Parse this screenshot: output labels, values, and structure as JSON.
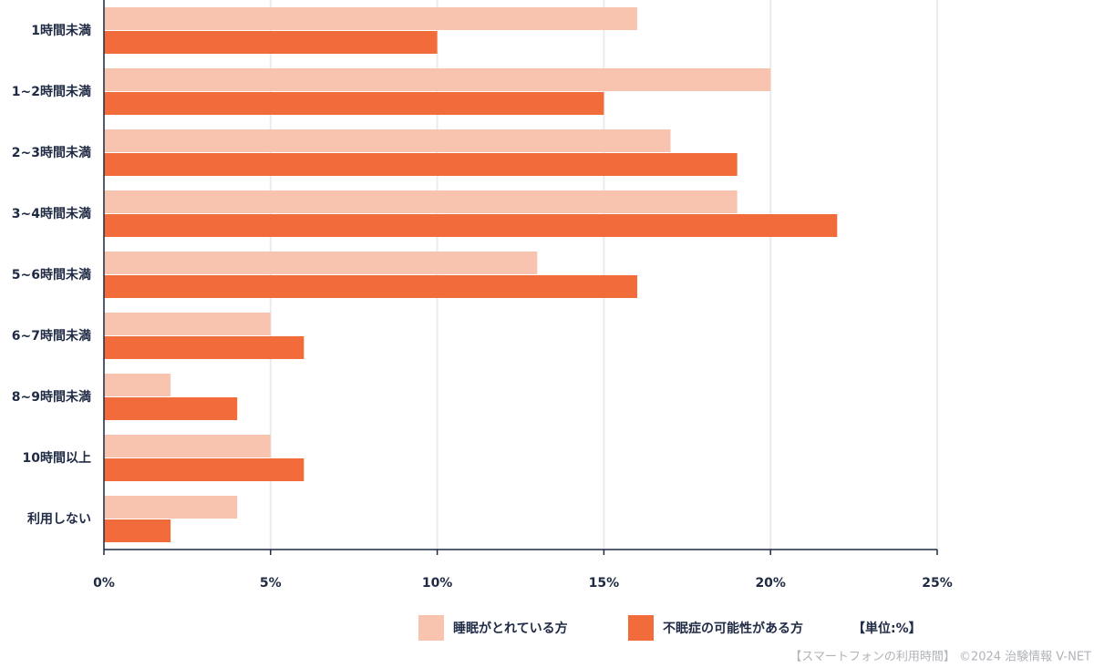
{
  "chart_data": {
    "type": "hbar",
    "categories": [
      "1時間未満",
      "1~2時間未満",
      "2~3時間未満",
      "3~4時間未満",
      "5~6時間未満",
      "6~7時間未満",
      "8~9時間未満",
      "10時間以上",
      "利用しない"
    ],
    "series": [
      {
        "name": "睡眠がとれている方",
        "color": "#f8c4b0",
        "values": [
          16,
          20,
          17,
          19,
          13,
          5,
          2,
          5,
          4
        ]
      },
      {
        "name": "不眠症の可能性がある方",
        "color": "#f26b3a",
        "values": [
          10,
          15,
          19,
          22,
          16,
          6,
          4,
          6,
          2
        ]
      }
    ],
    "xlim": [
      0,
      25
    ],
    "xticks": [
      {
        "value": 0,
        "label": "0%"
      },
      {
        "value": 5,
        "label": "5%"
      },
      {
        "value": 10,
        "label": "10%"
      },
      {
        "value": 15,
        "label": "15%"
      },
      {
        "value": 20,
        "label": "20%"
      },
      {
        "value": 25,
        "label": "25%"
      }
    ],
    "grid": true,
    "unit_note": "【単位:%】",
    "source": "【スマートフォンの利用時間】 ©2024 治験情報 V-NET"
  }
}
